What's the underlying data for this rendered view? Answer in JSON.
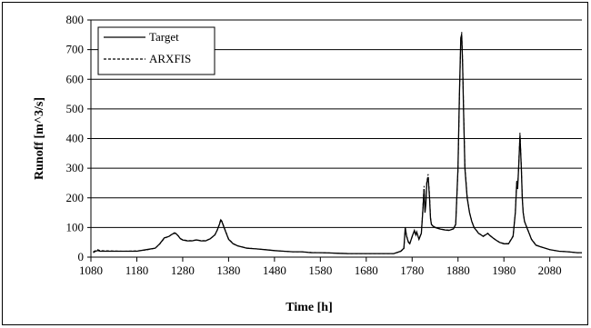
{
  "chart_data": {
    "type": "line",
    "title": "",
    "xlabel": "Time [h]",
    "ylabel": "Runoff [m^3/s]",
    "xlim": [
      1080,
      2150
    ],
    "ylim": [
      0,
      800
    ],
    "x_ticks": [
      1080,
      1180,
      1280,
      1380,
      1480,
      1580,
      1680,
      1780,
      1880,
      1980,
      2080
    ],
    "y_ticks": [
      0,
      100,
      200,
      300,
      400,
      500,
      600,
      700,
      800
    ],
    "grid": "horizontal",
    "legend": "top-left",
    "series": [
      {
        "name": "Target",
        "style": "solid",
        "color": "#000000",
        "x": [
          1085,
          1090,
          1095,
          1100,
          1120,
          1150,
          1180,
          1200,
          1220,
          1230,
          1240,
          1250,
          1255,
          1262,
          1265,
          1270,
          1275,
          1280,
          1290,
          1300,
          1310,
          1320,
          1330,
          1340,
          1350,
          1355,
          1360,
          1363,
          1366,
          1370,
          1375,
          1380,
          1390,
          1400,
          1420,
          1440,
          1460,
          1480,
          1500,
          1520,
          1540,
          1560,
          1580,
          1600,
          1620,
          1640,
          1660,
          1680,
          1700,
          1720,
          1740,
          1755,
          1762,
          1765,
          1768,
          1772,
          1775,
          1780,
          1785,
          1788,
          1790,
          1795,
          1800,
          1803,
          1806,
          1808,
          1810,
          1812,
          1815,
          1818,
          1820,
          1822,
          1825,
          1830,
          1840,
          1850,
          1860,
          1870,
          1875,
          1880,
          1883,
          1886,
          1888,
          1890,
          1892,
          1895,
          1900,
          1905,
          1910,
          1915,
          1920,
          1925,
          1930,
          1935,
          1940,
          1945,
          1950,
          1960,
          1970,
          1980,
          1990,
          2000,
          2005,
          2008,
          2010,
          2012,
          2015,
          2018,
          2020,
          2022,
          2025,
          2030,
          2035,
          2040,
          2050,
          2060,
          2080,
          2100,
          2120,
          2140,
          2150
        ],
        "y": [
          15,
          20,
          22,
          20,
          20,
          20,
          20,
          25,
          30,
          45,
          65,
          70,
          75,
          82,
          80,
          72,
          62,
          58,
          55,
          55,
          58,
          55,
          55,
          62,
          75,
          90,
          110,
          125,
          118,
          100,
          80,
          60,
          45,
          38,
          30,
          28,
          25,
          22,
          20,
          18,
          18,
          15,
          15,
          14,
          13,
          12,
          12,
          12,
          12,
          12,
          12,
          20,
          30,
          100,
          70,
          50,
          45,
          70,
          90,
          75,
          85,
          60,
          80,
          150,
          230,
          150,
          180,
          250,
          270,
          200,
          130,
          110,
          105,
          100,
          95,
          92,
          90,
          95,
          110,
          300,
          550,
          740,
          750,
          650,
          500,
          300,
          200,
          150,
          120,
          100,
          90,
          80,
          75,
          70,
          75,
          80,
          72,
          60,
          50,
          45,
          45,
          70,
          150,
          250,
          230,
          300,
          410,
          300,
          200,
          150,
          120,
          100,
          80,
          60,
          40,
          35,
          25,
          20,
          18,
          15,
          15
        ]
      },
      {
        "name": "ARXFIS",
        "style": "dashed",
        "color": "#000000",
        "x": [
          1085,
          1090,
          1095,
          1100,
          1120,
          1150,
          1180,
          1200,
          1220,
          1230,
          1240,
          1250,
          1255,
          1262,
          1265,
          1270,
          1275,
          1280,
          1290,
          1300,
          1310,
          1320,
          1330,
          1340,
          1350,
          1355,
          1360,
          1363,
          1366,
          1370,
          1375,
          1380,
          1390,
          1400,
          1420,
          1440,
          1460,
          1480,
          1500,
          1520,
          1540,
          1560,
          1580,
          1600,
          1620,
          1640,
          1660,
          1680,
          1700,
          1720,
          1740,
          1755,
          1762,
          1765,
          1768,
          1772,
          1775,
          1780,
          1785,
          1788,
          1790,
          1795,
          1800,
          1803,
          1806,
          1808,
          1810,
          1812,
          1815,
          1818,
          1820,
          1822,
          1825,
          1830,
          1840,
          1850,
          1860,
          1870,
          1875,
          1880,
          1883,
          1886,
          1888,
          1890,
          1892,
          1895,
          1900,
          1905,
          1910,
          1915,
          1920,
          1925,
          1930,
          1935,
          1940,
          1945,
          1950,
          1960,
          1970,
          1980,
          1990,
          2000,
          2005,
          2008,
          2010,
          2012,
          2015,
          2018,
          2020,
          2022,
          2025,
          2030,
          2035,
          2040,
          2050,
          2060,
          2080,
          2100,
          2120,
          2140,
          2150
        ],
        "y": [
          18,
          22,
          25,
          22,
          21,
          20,
          21,
          24,
          30,
          44,
          63,
          70,
          76,
          80,
          79,
          73,
          63,
          59,
          56,
          56,
          58,
          56,
          56,
          62,
          74,
          90,
          112,
          128,
          120,
          102,
          82,
          62,
          46,
          38,
          31,
          28,
          25,
          22,
          20,
          18,
          18,
          16,
          15,
          14,
          13,
          12,
          12,
          12,
          12,
          12,
          12,
          19,
          28,
          95,
          72,
          52,
          46,
          68,
          88,
          76,
          83,
          62,
          82,
          155,
          240,
          160,
          185,
          255,
          280,
          210,
          135,
          112,
          106,
          101,
          96,
          93,
          91,
          96,
          112,
          290,
          540,
          730,
          760,
          660,
          510,
          310,
          205,
          152,
          121,
          101,
          91,
          81,
          76,
          71,
          76,
          81,
          73,
          61,
          51,
          46,
          46,
          72,
          155,
          260,
          235,
          305,
          420,
          305,
          205,
          152,
          121,
          101,
          81,
          61,
          41,
          35,
          25,
          20,
          18,
          15,
          15
        ]
      }
    ]
  }
}
